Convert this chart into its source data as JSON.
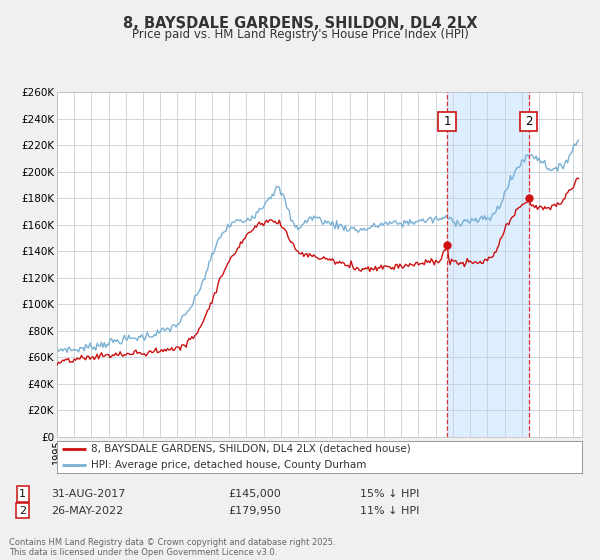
{
  "title": "8, BAYSDALE GARDENS, SHILDON, DL4 2LX",
  "subtitle": "Price paid vs. HM Land Registry's House Price Index (HPI)",
  "ylim": [
    0,
    260000
  ],
  "yticks": [
    0,
    20000,
    40000,
    60000,
    80000,
    100000,
    120000,
    140000,
    160000,
    180000,
    200000,
    220000,
    240000,
    260000
  ],
  "ytick_labels": [
    "£0",
    "£20K",
    "£40K",
    "£60K",
    "£80K",
    "£100K",
    "£120K",
    "£140K",
    "£160K",
    "£180K",
    "£200K",
    "£220K",
    "£240K",
    "£260K"
  ],
  "bg_color": "#f0f0f0",
  "plot_bg_color": "#ffffff",
  "grid_color": "#c8d0d8",
  "hpi_color": "#7ab0d4",
  "sale_color": "#cc1111",
  "vline_color": "#dd3333",
  "shade_color": "#ddeeff",
  "vline1_x": 2017.664,
  "vline2_x": 2022.397,
  "marker1_y": 145000,
  "marker2_y": 179950,
  "annotation1": {
    "num": "1",
    "label": "31-AUG-2017",
    "price": "£145,000",
    "hpi_diff": "15% ↓ HPI"
  },
  "annotation2": {
    "num": "2",
    "label": "26-MAY-2022",
    "price": "£179,950",
    "hpi_diff": "11% ↓ HPI"
  },
  "legend_entry1": "8, BAYSDALE GARDENS, SHILDON, DL4 2LX (detached house)",
  "legend_entry2": "HPI: Average price, detached house, County Durham",
  "footnote": "Contains HM Land Registry data © Crown copyright and database right 2025.\nThis data is licensed under the Open Government Licence v3.0.",
  "xmin": 1995.0,
  "xmax": 2025.5
}
